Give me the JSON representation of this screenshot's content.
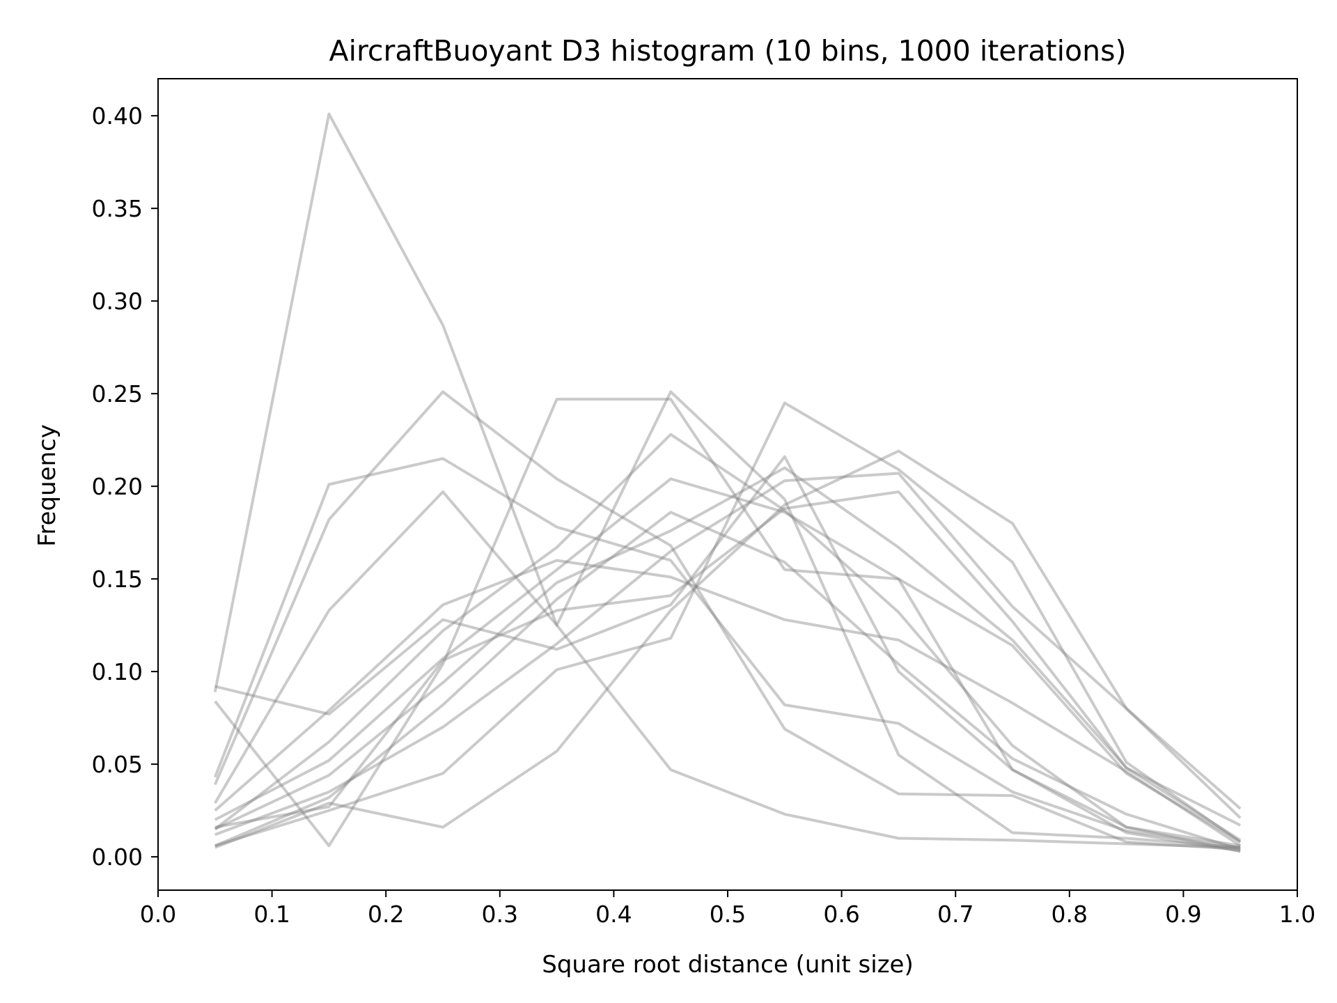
{
  "chart_data": {
    "type": "line",
    "title": "AircraftBuoyant D3 histogram (10 bins, 1000 iterations)",
    "xlabel": "Square root distance (unit size)",
    "ylabel": "Frequency",
    "xlim": [
      0.0,
      1.0
    ],
    "ylim": [
      -0.018,
      0.42
    ],
    "x_ticks": [
      "0.0",
      "0.1",
      "0.2",
      "0.3",
      "0.4",
      "0.5",
      "0.6",
      "0.7",
      "0.8",
      "0.9",
      "1.0"
    ],
    "y_ticks": [
      "0.00",
      "0.05",
      "0.10",
      "0.15",
      "0.20",
      "0.25",
      "0.30",
      "0.35",
      "0.40"
    ],
    "grid": false,
    "legend": "none",
    "line_color": "#808080",
    "line_opacity": 0.42,
    "x": [
      0.05,
      0.15,
      0.25,
      0.35,
      0.45,
      0.55,
      0.65,
      0.75,
      0.85,
      0.95
    ],
    "series": [
      {
        "values": [
          0.089,
          0.401,
          0.287,
          0.125,
          0.047,
          0.023,
          0.01,
          0.009,
          0.007,
          0.005
        ]
      },
      {
        "values": [
          0.043,
          0.201,
          0.215,
          0.178,
          0.16,
          0.082,
          0.072,
          0.035,
          0.014,
          0.005
        ]
      },
      {
        "values": [
          0.039,
          0.182,
          0.251,
          0.204,
          0.168,
          0.069,
          0.034,
          0.033,
          0.008,
          0.004
        ]
      },
      {
        "values": [
          0.029,
          0.133,
          0.197,
          0.125,
          0.251,
          0.193,
          0.055,
          0.013,
          0.01,
          0.005
        ]
      },
      {
        "values": [
          0.092,
          0.077,
          0.128,
          0.112,
          0.136,
          0.216,
          0.1,
          0.047,
          0.016,
          0.003
        ]
      },
      {
        "values": [
          0.084,
          0.006,
          0.104,
          0.247,
          0.247,
          0.155,
          0.15,
          0.047,
          0.013,
          0.003
        ]
      },
      {
        "values": [
          0.025,
          0.079,
          0.136,
          0.16,
          0.151,
          0.128,
          0.117,
          0.083,
          0.046,
          0.006
        ]
      },
      {
        "values": [
          0.015,
          0.062,
          0.122,
          0.167,
          0.228,
          0.187,
          0.132,
          0.06,
          0.016,
          0.006
        ]
      },
      {
        "values": [
          0.02,
          0.052,
          0.107,
          0.155,
          0.204,
          0.186,
          0.15,
          0.114,
          0.045,
          0.008
        ]
      },
      {
        "values": [
          0.015,
          0.044,
          0.094,
          0.148,
          0.176,
          0.21,
          0.167,
          0.117,
          0.048,
          0.009
        ]
      },
      {
        "values": [
          0.006,
          0.032,
          0.082,
          0.139,
          0.186,
          0.159,
          0.104,
          0.053,
          0.023,
          0.004
        ]
      },
      {
        "values": [
          0.012,
          0.035,
          0.07,
          0.115,
          0.165,
          0.203,
          0.207,
          0.135,
          0.08,
          0.026
        ]
      },
      {
        "values": [
          0.006,
          0.025,
          0.045,
          0.101,
          0.118,
          0.245,
          0.209,
          0.159,
          0.051,
          0.008
        ]
      },
      {
        "values": [
          0.005,
          0.029,
          0.016,
          0.057,
          0.133,
          0.19,
          0.219,
          0.18,
          0.08,
          0.021
        ]
      },
      {
        "values": [
          0.016,
          0.027,
          0.106,
          0.133,
          0.141,
          0.188,
          0.197,
          0.127,
          0.048,
          0.017
        ]
      }
    ]
  }
}
